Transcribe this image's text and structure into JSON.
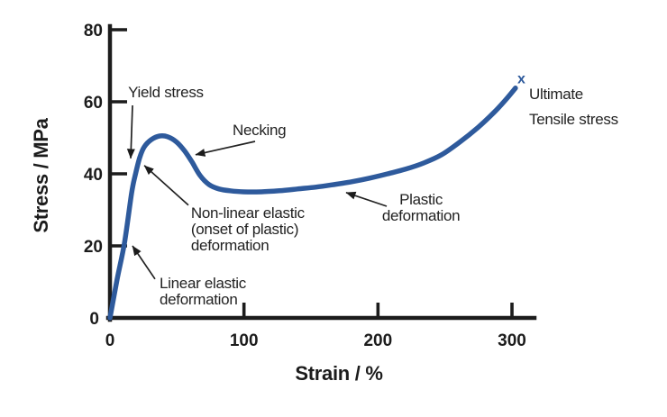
{
  "page": {
    "background": "#ffffff"
  },
  "chart_data": {
    "type": "line",
    "title": "",
    "xlabel": "Strain / %",
    "ylabel": "Stress / MPa",
    "xlim": [
      0,
      317
    ],
    "ylim": [
      0,
      80
    ],
    "x_ticks": [
      0,
      100,
      200,
      300
    ],
    "y_ticks": [
      0,
      20,
      40,
      60,
      80
    ],
    "grid": false,
    "legend": false,
    "curve_color": "#2e5a9c",
    "axis_color": "#1c1c1c",
    "text_color": "#1c1c1c",
    "series": [
      {
        "name": "stress-strain-curve",
        "points": [
          [
            0,
            0
          ],
          [
            5.4,
            10.8
          ],
          [
            10.8,
            20.8
          ],
          [
            16.1,
            34.5
          ],
          [
            18.8,
            39.5
          ],
          [
            22.2,
            44.5
          ],
          [
            25.6,
            47.5
          ],
          [
            30.9,
            49.5
          ],
          [
            37,
            50.5
          ],
          [
            43,
            50.3
          ],
          [
            49.8,
            48.8
          ],
          [
            55.8,
            46.3
          ],
          [
            61.2,
            43.3
          ],
          [
            67.3,
            39.5
          ],
          [
            74,
            37
          ],
          [
            81.4,
            35.8
          ],
          [
            89.5,
            35.3
          ],
          [
            99.5,
            35
          ],
          [
            113,
            35
          ],
          [
            126.4,
            35.3
          ],
          [
            139.9,
            35.8
          ],
          [
            153.4,
            36.3
          ],
          [
            166.8,
            37
          ],
          [
            180.3,
            37.8
          ],
          [
            193.7,
            38.8
          ],
          [
            207.2,
            40
          ],
          [
            220.6,
            41.3
          ],
          [
            234.1,
            43
          ],
          [
            247.5,
            45.3
          ],
          [
            261,
            48.8
          ],
          [
            274.4,
            52.8
          ],
          [
            286.5,
            57
          ],
          [
            295.9,
            60.8
          ],
          [
            302.6,
            63.8
          ]
        ]
      }
    ],
    "end_marker": {
      "x": 307,
      "y": 66.3,
      "symbol": "x",
      "color": "#2e5a9c"
    },
    "annotations": [
      {
        "id": "yield-stress",
        "lines": [
          "Yield stress"
        ],
        "x": 13.5,
        "y": 64.5,
        "align": "left",
        "arrow": {
          "x1": 16.8,
          "y1": 59.0,
          "x2": 15.5,
          "y2": 44.3
        }
      },
      {
        "id": "necking",
        "lines": [
          "Necking"
        ],
        "x": 91.5,
        "y": 54.0,
        "align": "left",
        "arrow": {
          "x1": 108.3,
          "y1": 49.0,
          "x2": 63.9,
          "y2": 45.3
        }
      },
      {
        "id": "non-linear-elastic",
        "lines": [
          "Non-linear elastic",
          "(onset of plastic)",
          "deformation"
        ],
        "x": 60.5,
        "y": 31.0,
        "align": "left",
        "arrow": {
          "x1": 58.5,
          "y1": 31.3,
          "x2": 25.6,
          "y2": 42.3
        }
      },
      {
        "id": "linear-elastic",
        "lines": [
          "Linear elastic",
          "deformation"
        ],
        "x": 37.0,
        "y": 11.5,
        "align": "left",
        "arrow": {
          "x1": 33.6,
          "y1": 10.8,
          "x2": 16.8,
          "y2": 20.0
        }
      },
      {
        "id": "plastic-deformation",
        "lines": [
          "Plastic",
          "deformation"
        ],
        "x": 232.1,
        "y": 34.8,
        "align": "center",
        "arrow": {
          "x1": 206.5,
          "y1": 31.0,
          "x2": 176.2,
          "y2": 34.8
        }
      },
      {
        "id": "ultimate-tensile-stress",
        "lines": [
          "Ultimate",
          "Tensile stress"
        ],
        "x": 312.8,
        "y": 64.0,
        "align": "left",
        "lh": 28
      }
    ]
  }
}
